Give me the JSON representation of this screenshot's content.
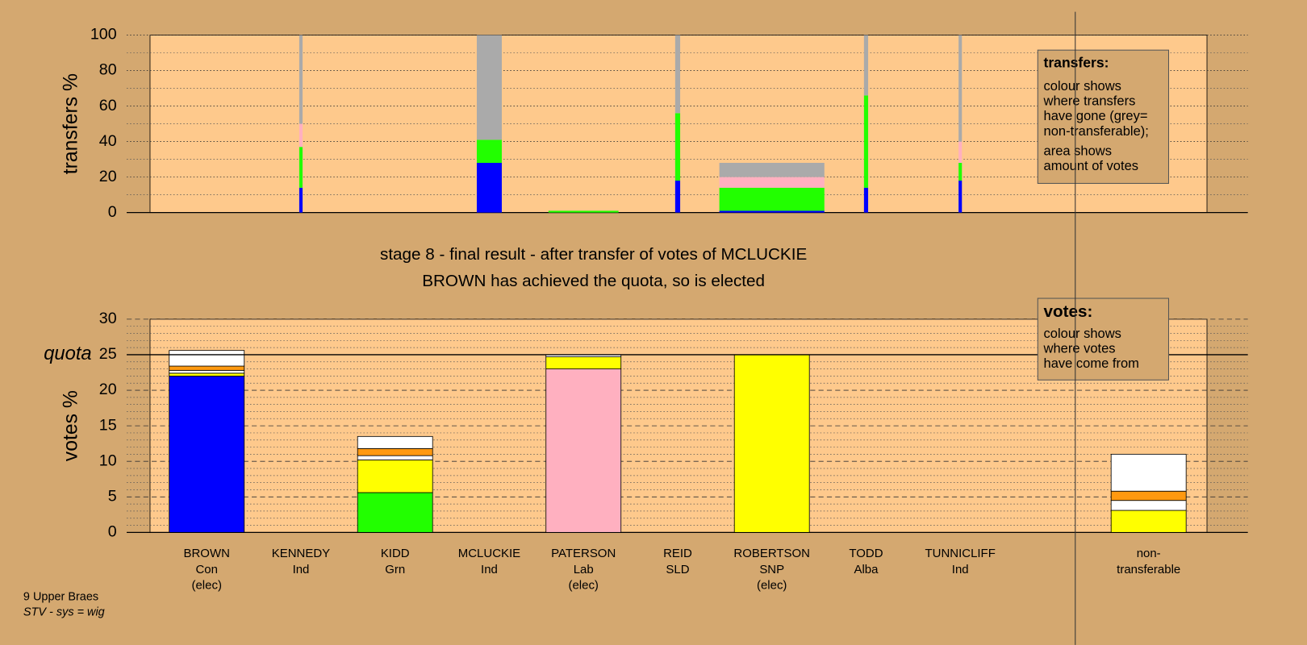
{
  "chart_data": [
    {
      "type": "bar",
      "stacked": true,
      "ylabel": "transfers %",
      "ylim": [
        0,
        100
      ],
      "yticks": [
        0,
        20,
        40,
        60,
        80,
        100
      ],
      "minor_yticks": [
        10,
        30,
        50,
        70,
        90
      ],
      "categories": [
        "BROWN",
        "KENNEDY",
        "KIDD",
        "MCLUCKIE",
        "PATERSON",
        "REID",
        "ROBERTSON",
        "TODD",
        "TUNNICLIFF"
      ],
      "widths": [
        null,
        0.4,
        null,
        3,
        8.4,
        0.6,
        12.6,
        0.5,
        0.4
      ],
      "series": [
        {
          "color": "#0000ff",
          "values": [
            null,
            14,
            null,
            28,
            0,
            18,
            1,
            14,
            18
          ]
        },
        {
          "color": "#22ff00",
          "values": [
            null,
            23,
            null,
            13,
            1,
            38,
            13,
            52,
            10
          ]
        },
        {
          "color": "#ffb0c0",
          "values": [
            null,
            13,
            null,
            0,
            0,
            0,
            6,
            0,
            12
          ]
        },
        {
          "color": "#aaaaaa",
          "values": [
            null,
            50,
            null,
            59,
            0,
            44,
            8,
            34,
            60
          ]
        }
      ],
      "legend_title": "transfers:",
      "legend_lines": [
        "colour shows",
        "where transfers",
        "have gone (grey=",
        "non-transferable);"
      ],
      "legend_lines2": [
        "area shows",
        "amount of votes"
      ]
    },
    {
      "type": "bar",
      "stacked": true,
      "ylabel": "votes %",
      "ylim": [
        0,
        30
      ],
      "yticks": [
        0,
        5,
        10,
        15,
        20,
        25,
        30
      ],
      "minor_yticks": [
        1,
        2,
        3,
        4,
        6,
        7,
        8,
        9,
        11,
        12,
        13,
        14,
        16,
        17,
        18,
        19,
        21,
        22,
        23,
        24,
        26,
        27,
        28,
        29
      ],
      "quota": 25,
      "quota_label": "quota",
      "title": "stage 8 - final result - after transfer of votes of MCLUCKIE",
      "subtitle": "BROWN has achieved the quota, so is elected",
      "categories": [
        [
          "BROWN",
          "Con",
          "(elec)"
        ],
        [
          "KENNEDY",
          "Ind"
        ],
        [
          "KIDD",
          "Grn"
        ],
        [
          "MCLUCKIE",
          "Ind"
        ],
        [
          "PATERSON",
          "Lab",
          "(elec)"
        ],
        [
          "REID",
          "SLD"
        ],
        [
          "ROBERTSON",
          "SNP",
          "(elec)"
        ],
        [
          "TODD",
          "Alba"
        ],
        [
          "TUNNICLIFF",
          "Ind"
        ],
        [
          "non-",
          "transferable"
        ]
      ],
      "series": [
        {
          "color": "#0000ff",
          "values": [
            22,
            0,
            0,
            0,
            0,
            0,
            0,
            0,
            0,
            0
          ]
        },
        {
          "color": "#22ff00",
          "values": [
            0,
            0,
            5.6,
            0,
            0,
            0,
            0,
            0,
            0,
            0
          ]
        },
        {
          "color": "#ffb0c0",
          "values": [
            0,
            0,
            0,
            0,
            23,
            0,
            0,
            0,
            0,
            0
          ]
        },
        {
          "color": "#ffff00",
          "values": [
            0.4,
            0,
            4.6,
            0,
            1.7,
            0,
            25,
            0,
            0,
            3.1
          ]
        },
        {
          "color": "#ffffff",
          "values": [
            0.4,
            0,
            0.6,
            0,
            0.3,
            0,
            0,
            0,
            0,
            1.4
          ]
        },
        {
          "color": "#ff9910",
          "values": [
            0.6,
            0,
            1,
            0,
            0,
            0,
            0,
            0,
            0,
            1.3
          ]
        },
        {
          "color": "#ffffff",
          "values": [
            2.2,
            0,
            1.7,
            0,
            0,
            0,
            0,
            0,
            0,
            5.2
          ]
        }
      ],
      "legend_title": "votes:",
      "legend_lines": [
        "colour shows",
        "where votes",
        "have come from"
      ]
    }
  ],
  "footer": [
    "9 Upper Braes",
    "STV - sys = wig"
  ]
}
